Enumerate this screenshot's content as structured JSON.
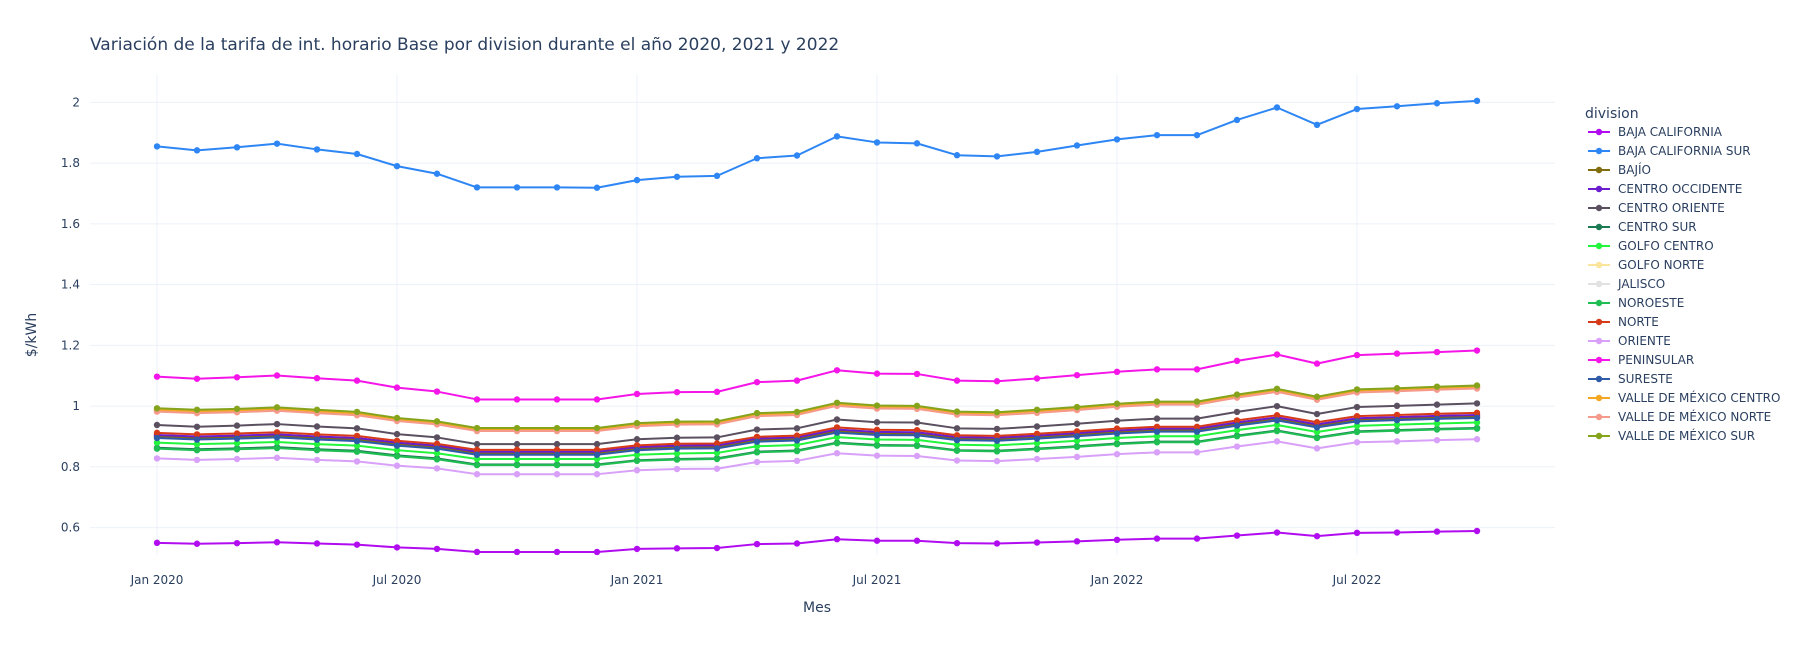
{
  "chart_data": {
    "type": "line",
    "title": "Variación de la tarifa de int. horario Base por division durante el año 2020, 2021 y 2022",
    "xlabel": "Mes",
    "ylabel": "$/kWh",
    "legend_title": "division",
    "legend_position": "right",
    "grid": true,
    "ylim": [
      0.51,
      2.09
    ],
    "yticks": [
      0.6,
      0.8,
      1,
      1.2,
      1.4,
      1.6,
      1.8,
      2
    ],
    "ytick_labels": [
      "0.6",
      "0.8",
      "1",
      "1.2",
      "1.4",
      "1.6",
      "1.8",
      "2"
    ],
    "x": [
      "2020-01",
      "2020-02",
      "2020-03",
      "2020-04",
      "2020-05",
      "2020-06",
      "2020-07",
      "2020-08",
      "2020-09",
      "2020-10",
      "2020-11",
      "2020-12",
      "2021-01",
      "2021-02",
      "2021-03",
      "2021-04",
      "2021-05",
      "2021-06",
      "2021-07",
      "2021-08",
      "2021-09",
      "2021-10",
      "2021-11",
      "2021-12",
      "2022-01",
      "2022-02",
      "2022-03",
      "2022-04",
      "2022-05",
      "2022-06",
      "2022-07",
      "2022-08",
      "2022-09",
      "2022-10"
    ],
    "xticks": [
      "2020-01",
      "2020-07",
      "2021-01",
      "2021-07",
      "2022-01",
      "2022-07"
    ],
    "xtick_labels": [
      "Jan 2020",
      "Jul 2020",
      "Jan 2021",
      "Jul 2021",
      "Jan 2022",
      "Jul 2022"
    ],
    "series": [
      {
        "name": "BAJA CALIFORNIA",
        "color": "#b10bf0",
        "values": [
          0.55,
          0.547,
          0.549,
          0.552,
          0.548,
          0.544,
          0.535,
          0.53,
          0.52,
          0.52,
          0.52,
          0.52,
          0.53,
          0.532,
          0.533,
          0.546,
          0.548,
          0.562,
          0.557,
          0.557,
          0.549,
          0.548,
          0.551,
          0.555,
          0.56,
          0.564,
          0.564,
          0.574,
          0.584,
          0.572,
          0.583,
          0.584,
          0.587,
          0.589
        ]
      },
      {
        "name": "BAJA CALIFORNIA SUR",
        "color": "#2e86f5",
        "values": [
          1.855,
          1.842,
          1.852,
          1.864,
          1.845,
          1.83,
          1.79,
          1.765,
          1.72,
          1.72,
          1.72,
          1.719,
          1.744,
          1.755,
          1.758,
          1.816,
          1.825,
          1.888,
          1.868,
          1.865,
          1.826,
          1.822,
          1.837,
          1.858,
          1.878,
          1.892,
          1.892,
          1.942,
          1.983,
          1.926,
          1.978,
          1.987,
          1.997,
          2.005
        ]
      },
      {
        "name": "BAJÍO",
        "color": "#806c0c",
        "values": [
          0.9,
          0.895,
          0.898,
          0.902,
          0.895,
          0.89,
          0.875,
          0.865,
          0.845,
          0.845,
          0.845,
          0.845,
          0.86,
          0.865,
          0.866,
          0.888,
          0.892,
          0.918,
          0.91,
          0.909,
          0.893,
          0.891,
          0.898,
          0.906,
          0.915,
          0.921,
          0.921,
          0.941,
          0.958,
          0.935,
          0.955,
          0.959,
          0.963,
          0.966
        ]
      },
      {
        "name": "CENTRO OCCIDENTE",
        "color": "#6a1ccf",
        "values": [
          0.905,
          0.9,
          0.903,
          0.907,
          0.9,
          0.895,
          0.88,
          0.87,
          0.85,
          0.85,
          0.85,
          0.85,
          0.865,
          0.87,
          0.871,
          0.893,
          0.897,
          0.923,
          0.915,
          0.914,
          0.898,
          0.896,
          0.903,
          0.911,
          0.92,
          0.926,
          0.926,
          0.946,
          0.963,
          0.94,
          0.96,
          0.964,
          0.968,
          0.971
        ]
      },
      {
        "name": "CENTRO ORIENTE",
        "color": "#5a5060",
        "values": [
          0.938,
          0.932,
          0.936,
          0.941,
          0.933,
          0.927,
          0.908,
          0.897,
          0.875,
          0.875,
          0.875,
          0.875,
          0.891,
          0.896,
          0.897,
          0.923,
          0.927,
          0.956,
          0.947,
          0.946,
          0.927,
          0.925,
          0.933,
          0.942,
          0.952,
          0.959,
          0.959,
          0.981,
          1.0,
          0.974,
          0.997,
          1.001,
          1.005,
          1.009
        ]
      },
      {
        "name": "CENTRO SUR",
        "color": "#1c7a52",
        "values": [
          0.863,
          0.858,
          0.861,
          0.865,
          0.858,
          0.853,
          0.838,
          0.828,
          0.808,
          0.808,
          0.808,
          0.808,
          0.822,
          0.826,
          0.828,
          0.85,
          0.854,
          0.88,
          0.872,
          0.871,
          0.855,
          0.853,
          0.86,
          0.868,
          0.877,
          0.883,
          0.883,
          0.903,
          0.92,
          0.897,
          0.917,
          0.921,
          0.925,
          0.928
        ]
      },
      {
        "name": "GOLFO CENTRO",
        "color": "#22f53c",
        "values": [
          0.88,
          0.875,
          0.878,
          0.882,
          0.875,
          0.87,
          0.855,
          0.845,
          0.826,
          0.826,
          0.826,
          0.826,
          0.84,
          0.844,
          0.846,
          0.868,
          0.872,
          0.898,
          0.89,
          0.889,
          0.873,
          0.871,
          0.878,
          0.886,
          0.895,
          0.901,
          0.901,
          0.921,
          0.938,
          0.915,
          0.935,
          0.939,
          0.943,
          0.946
        ]
      },
      {
        "name": "GOLFO NORTE",
        "color": "#fbe49b",
        "values": [
          0.985,
          0.98,
          0.983,
          0.988,
          0.98,
          0.973,
          0.954,
          0.943,
          0.921,
          0.921,
          0.921,
          0.921,
          0.937,
          0.942,
          0.943,
          0.97,
          0.974,
          1.004,
          0.995,
          0.994,
          0.975,
          0.973,
          0.981,
          0.99,
          1.001,
          1.008,
          1.008,
          1.031,
          1.05,
          1.024,
          1.048,
          1.052,
          1.057,
          1.061
        ]
      },
      {
        "name": "JALISCO",
        "color": "#e2e2e2",
        "values": [
          0.984,
          0.979,
          0.982,
          0.987,
          0.979,
          0.972,
          0.953,
          0.942,
          0.92,
          0.92,
          0.92,
          0.92,
          0.936,
          0.941,
          0.942,
          0.969,
          0.973,
          1.003,
          0.994,
          0.993,
          0.974,
          0.972,
          0.98,
          0.989,
          1.0,
          1.007,
          1.007,
          1.03,
          1.049,
          1.023,
          1.047,
          1.051,
          1.056,
          1.06
        ]
      },
      {
        "name": "NOROESTE",
        "color": "#1fbe52",
        "values": [
          0.86,
          0.855,
          0.858,
          0.862,
          0.855,
          0.85,
          0.835,
          0.825,
          0.806,
          0.806,
          0.806,
          0.806,
          0.82,
          0.824,
          0.826,
          0.848,
          0.852,
          0.878,
          0.87,
          0.869,
          0.853,
          0.851,
          0.858,
          0.866,
          0.875,
          0.881,
          0.881,
          0.901,
          0.918,
          0.895,
          0.915,
          0.919,
          0.923,
          0.926
        ]
      },
      {
        "name": "NORTE",
        "color": "#d63a18",
        "values": [
          0.912,
          0.907,
          0.91,
          0.914,
          0.907,
          0.902,
          0.886,
          0.876,
          0.856,
          0.856,
          0.856,
          0.856,
          0.871,
          0.876,
          0.877,
          0.899,
          0.903,
          0.93,
          0.922,
          0.921,
          0.904,
          0.902,
          0.909,
          0.917,
          0.926,
          0.932,
          0.932,
          0.953,
          0.97,
          0.947,
          0.967,
          0.971,
          0.975,
          0.978
        ]
      },
      {
        "name": "ORIENTE",
        "color": "#d8a0f8",
        "values": [
          0.828,
          0.823,
          0.826,
          0.83,
          0.823,
          0.818,
          0.804,
          0.795,
          0.776,
          0.776,
          0.776,
          0.776,
          0.789,
          0.793,
          0.794,
          0.816,
          0.82,
          0.845,
          0.837,
          0.836,
          0.821,
          0.819,
          0.826,
          0.833,
          0.842,
          0.848,
          0.848,
          0.867,
          0.884,
          0.861,
          0.881,
          0.884,
          0.888,
          0.891
        ]
      },
      {
        "name": "PENINSULAR",
        "color": "#f515e8",
        "values": [
          1.097,
          1.09,
          1.095,
          1.101,
          1.092,
          1.084,
          1.061,
          1.048,
          1.022,
          1.022,
          1.022,
          1.022,
          1.04,
          1.046,
          1.047,
          1.079,
          1.084,
          1.118,
          1.107,
          1.106,
          1.084,
          1.082,
          1.091,
          1.102,
          1.113,
          1.121,
          1.121,
          1.149,
          1.17,
          1.14,
          1.168,
          1.173,
          1.178,
          1.183
        ]
      },
      {
        "name": "SURESTE",
        "color": "#2e5ba8",
        "values": [
          0.895,
          0.89,
          0.893,
          0.897,
          0.89,
          0.885,
          0.87,
          0.86,
          0.84,
          0.84,
          0.84,
          0.84,
          0.855,
          0.86,
          0.861,
          0.883,
          0.887,
          0.913,
          0.905,
          0.904,
          0.888,
          0.886,
          0.893,
          0.901,
          0.91,
          0.916,
          0.916,
          0.936,
          0.953,
          0.93,
          0.95,
          0.954,
          0.958,
          0.961
        ]
      },
      {
        "name": "VALLE DE MÉXICO CENTRO",
        "color": "#f5a623",
        "values": [
          0.988,
          0.983,
          0.986,
          0.991,
          0.983,
          0.976,
          0.957,
          0.946,
          0.924,
          0.924,
          0.924,
          0.924,
          0.94,
          0.945,
          0.946,
          0.973,
          0.977,
          1.007,
          0.998,
          0.997,
          0.978,
          0.976,
          0.984,
          0.993,
          1.004,
          1.011,
          1.011,
          1.034,
          1.053,
          1.027,
          1.051,
          1.055,
          1.06,
          1.064
        ]
      },
      {
        "name": "VALLE DE MÉXICO NORTE",
        "color": "#f59a8a",
        "values": [
          0.982,
          0.977,
          0.98,
          0.985,
          0.977,
          0.97,
          0.951,
          0.94,
          0.918,
          0.918,
          0.918,
          0.918,
          0.934,
          0.939,
          0.94,
          0.967,
          0.971,
          1.001,
          0.992,
          0.991,
          0.972,
          0.97,
          0.978,
          0.987,
          0.998,
          1.005,
          1.005,
          1.028,
          1.047,
          1.021,
          1.045,
          1.049,
          1.054,
          1.058
        ]
      },
      {
        "name": "VALLE DE MÉXICO SUR",
        "color": "#85a41c",
        "values": [
          0.993,
          0.988,
          0.991,
          0.996,
          0.988,
          0.981,
          0.961,
          0.95,
          0.928,
          0.928,
          0.928,
          0.928,
          0.944,
          0.949,
          0.95,
          0.977,
          0.981,
          1.011,
          1.002,
          1.001,
          0.982,
          0.98,
          0.988,
          0.997,
          1.008,
          1.015,
          1.015,
          1.038,
          1.057,
          1.031,
          1.055,
          1.059,
          1.064,
          1.068
        ]
      }
    ]
  }
}
